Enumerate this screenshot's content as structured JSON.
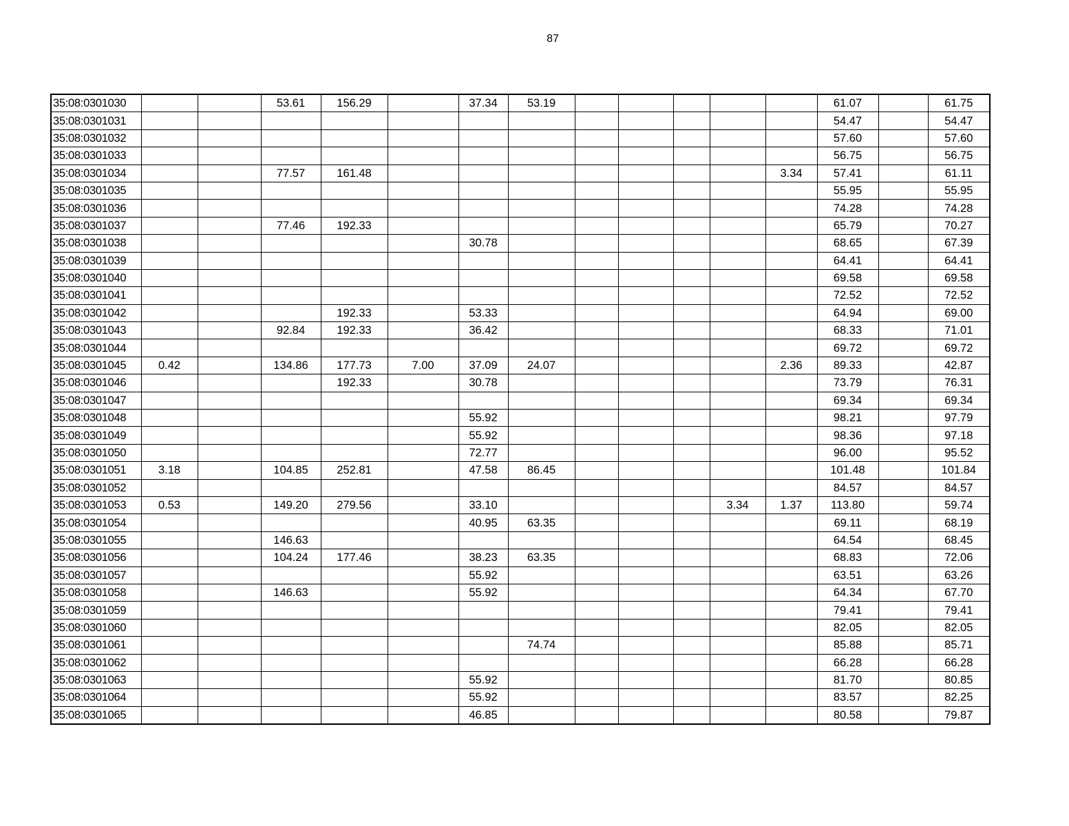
{
  "page": {
    "number": "87"
  },
  "table": {
    "rows": [
      [
        "35:08:0301030",
        "",
        "",
        "53.61",
        "156.29",
        "",
        "37.34",
        "53.19",
        "",
        "",
        "",
        "",
        "",
        "61.07",
        "",
        "61.75"
      ],
      [
        "35:08:0301031",
        "",
        "",
        "",
        "",
        "",
        "",
        "",
        "",
        "",
        "",
        "",
        "",
        "54.47",
        "",
        "54.47"
      ],
      [
        "35:08:0301032",
        "",
        "",
        "",
        "",
        "",
        "",
        "",
        "",
        "",
        "",
        "",
        "",
        "57.60",
        "",
        "57.60"
      ],
      [
        "35:08:0301033",
        "",
        "",
        "",
        "",
        "",
        "",
        "",
        "",
        "",
        "",
        "",
        "",
        "56.75",
        "",
        "56.75"
      ],
      [
        "35:08:0301034",
        "",
        "",
        "77.57",
        "161.48",
        "",
        "",
        "",
        "",
        "",
        "",
        "",
        "3.34",
        "57.41",
        "",
        "61.11"
      ],
      [
        "35:08:0301035",
        "",
        "",
        "",
        "",
        "",
        "",
        "",
        "",
        "",
        "",
        "",
        "",
        "55.95",
        "",
        "55.95"
      ],
      [
        "35:08:0301036",
        "",
        "",
        "",
        "",
        "",
        "",
        "",
        "",
        "",
        "",
        "",
        "",
        "74.28",
        "",
        "74.28"
      ],
      [
        "35:08:0301037",
        "",
        "",
        "77.46",
        "192.33",
        "",
        "",
        "",
        "",
        "",
        "",
        "",
        "",
        "65.79",
        "",
        "70.27"
      ],
      [
        "35:08:0301038",
        "",
        "",
        "",
        "",
        "",
        "30.78",
        "",
        "",
        "",
        "",
        "",
        "",
        "68.65",
        "",
        "67.39"
      ],
      [
        "35:08:0301039",
        "",
        "",
        "",
        "",
        "",
        "",
        "",
        "",
        "",
        "",
        "",
        "",
        "64.41",
        "",
        "64.41"
      ],
      [
        "35:08:0301040",
        "",
        "",
        "",
        "",
        "",
        "",
        "",
        "",
        "",
        "",
        "",
        "",
        "69.58",
        "",
        "69.58"
      ],
      [
        "35:08:0301041",
        "",
        "",
        "",
        "",
        "",
        "",
        "",
        "",
        "",
        "",
        "",
        "",
        "72.52",
        "",
        "72.52"
      ],
      [
        "35:08:0301042",
        "",
        "",
        "",
        "192.33",
        "",
        "53.33",
        "",
        "",
        "",
        "",
        "",
        "",
        "64.94",
        "",
        "69.00"
      ],
      [
        "35:08:0301043",
        "",
        "",
        "92.84",
        "192.33",
        "",
        "36.42",
        "",
        "",
        "",
        "",
        "",
        "",
        "68.33",
        "",
        "71.01"
      ],
      [
        "35:08:0301044",
        "",
        "",
        "",
        "",
        "",
        "",
        "",
        "",
        "",
        "",
        "",
        "",
        "69.72",
        "",
        "69.72"
      ],
      [
        "35:08:0301045",
        "0.42",
        "",
        "134.86",
        "177.73",
        "7.00",
        "37.09",
        "24.07",
        "",
        "",
        "",
        "",
        "2.36",
        "89.33",
        "",
        "42.87"
      ],
      [
        "35:08:0301046",
        "",
        "",
        "",
        "192.33",
        "",
        "30.78",
        "",
        "",
        "",
        "",
        "",
        "",
        "73.79",
        "",
        "76.31"
      ],
      [
        "35:08:0301047",
        "",
        "",
        "",
        "",
        "",
        "",
        "",
        "",
        "",
        "",
        "",
        "",
        "69.34",
        "",
        "69.34"
      ],
      [
        "35:08:0301048",
        "",
        "",
        "",
        "",
        "",
        "55.92",
        "",
        "",
        "",
        "",
        "",
        "",
        "98.21",
        "",
        "97.79"
      ],
      [
        "35:08:0301049",
        "",
        "",
        "",
        "",
        "",
        "55.92",
        "",
        "",
        "",
        "",
        "",
        "",
        "98.36",
        "",
        "97.18"
      ],
      [
        "35:08:0301050",
        "",
        "",
        "",
        "",
        "",
        "72.77",
        "",
        "",
        "",
        "",
        "",
        "",
        "96.00",
        "",
        "95.52"
      ],
      [
        "35:08:0301051",
        "3.18",
        "",
        "104.85",
        "252.81",
        "",
        "47.58",
        "86.45",
        "",
        "",
        "",
        "",
        "",
        "101.48",
        "",
        "101.84"
      ],
      [
        "35:08:0301052",
        "",
        "",
        "",
        "",
        "",
        "",
        "",
        "",
        "",
        "",
        "",
        "",
        "84.57",
        "",
        "84.57"
      ],
      [
        "35:08:0301053",
        "0.53",
        "",
        "149.20",
        "279.56",
        "",
        "33.10",
        "",
        "",
        "",
        "",
        "3.34",
        "1.37",
        "113.80",
        "",
        "59.74"
      ],
      [
        "35:08:0301054",
        "",
        "",
        "",
        "",
        "",
        "40.95",
        "63.35",
        "",
        "",
        "",
        "",
        "",
        "69.11",
        "",
        "68.19"
      ],
      [
        "35:08:0301055",
        "",
        "",
        "146.63",
        "",
        "",
        "",
        "",
        "",
        "",
        "",
        "",
        "",
        "64.54",
        "",
        "68.45"
      ],
      [
        "35:08:0301056",
        "",
        "",
        "104.24",
        "177.46",
        "",
        "38.23",
        "63.35",
        "",
        "",
        "",
        "",
        "",
        "68.83",
        "",
        "72.06"
      ],
      [
        "35:08:0301057",
        "",
        "",
        "",
        "",
        "",
        "55.92",
        "",
        "",
        "",
        "",
        "",
        "",
        "63.51",
        "",
        "63.26"
      ],
      [
        "35:08:0301058",
        "",
        "",
        "146.63",
        "",
        "",
        "55.92",
        "",
        "",
        "",
        "",
        "",
        "",
        "64.34",
        "",
        "67.70"
      ],
      [
        "35:08:0301059",
        "",
        "",
        "",
        "",
        "",
        "",
        "",
        "",
        "",
        "",
        "",
        "",
        "79.41",
        "",
        "79.41"
      ],
      [
        "35:08:0301060",
        "",
        "",
        "",
        "",
        "",
        "",
        "",
        "",
        "",
        "",
        "",
        "",
        "82.05",
        "",
        "82.05"
      ],
      [
        "35:08:0301061",
        "",
        "",
        "",
        "",
        "",
        "",
        "74.74",
        "",
        "",
        "",
        "",
        "",
        "85.88",
        "",
        "85.71"
      ],
      [
        "35:08:0301062",
        "",
        "",
        "",
        "",
        "",
        "",
        "",
        "",
        "",
        "",
        "",
        "",
        "66.28",
        "",
        "66.28"
      ],
      [
        "35:08:0301063",
        "",
        "",
        "",
        "",
        "",
        "55.92",
        "",
        "",
        "",
        "",
        "",
        "",
        "81.70",
        "",
        "80.85"
      ],
      [
        "35:08:0301064",
        "",
        "",
        "",
        "",
        "",
        "55.92",
        "",
        "",
        "",
        "",
        "",
        "",
        "83.57",
        "",
        "82.25"
      ],
      [
        "35:08:0301065",
        "",
        "",
        "",
        "",
        "",
        "46.85",
        "",
        "",
        "",
        "",
        "",
        "",
        "80.58",
        "",
        "79.87"
      ]
    ]
  }
}
